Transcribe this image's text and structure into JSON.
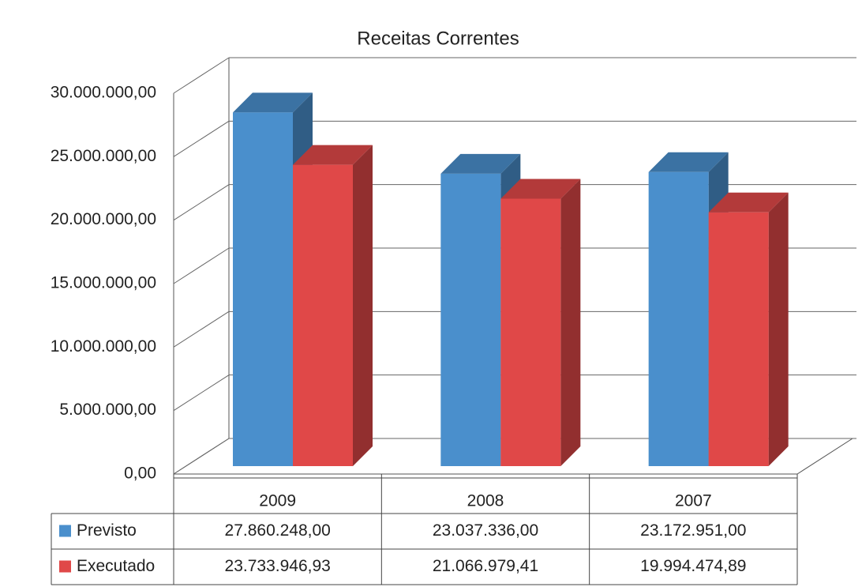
{
  "chart_data": {
    "type": "bar3d",
    "title": "Receitas Correntes",
    "categories": [
      "2009",
      "2008",
      "2007"
    ],
    "series": [
      {
        "name": "Previsto",
        "color": "#4a8fcc",
        "values": [
          27860248.0,
          23037336.0,
          23172951.0
        ],
        "value_labels": [
          "27.860.248,00",
          "23.037.336,00",
          "23.172.951,00"
        ]
      },
      {
        "name": "Executado",
        "color": "#e04848",
        "values": [
          23733946.93,
          21066979.41,
          19994474.89
        ],
        "value_labels": [
          "23.733.946,93",
          "21.066.979,41",
          "19.994.474,89"
        ]
      }
    ],
    "ylim": [
      0,
      30000000
    ],
    "yticks": [
      {
        "value": 0,
        "label": "0,00"
      },
      {
        "value": 5000000,
        "label": "5.000.000,00"
      },
      {
        "value": 10000000,
        "label": "10.000.000,00"
      },
      {
        "value": 15000000,
        "label": "15.000.000,00"
      },
      {
        "value": 20000000,
        "label": "20.000.000,00"
      },
      {
        "value": 25000000,
        "label": "25.000.000,00"
      },
      {
        "value": 30000000,
        "label": "30.000.000,00"
      }
    ],
    "grid": true
  }
}
